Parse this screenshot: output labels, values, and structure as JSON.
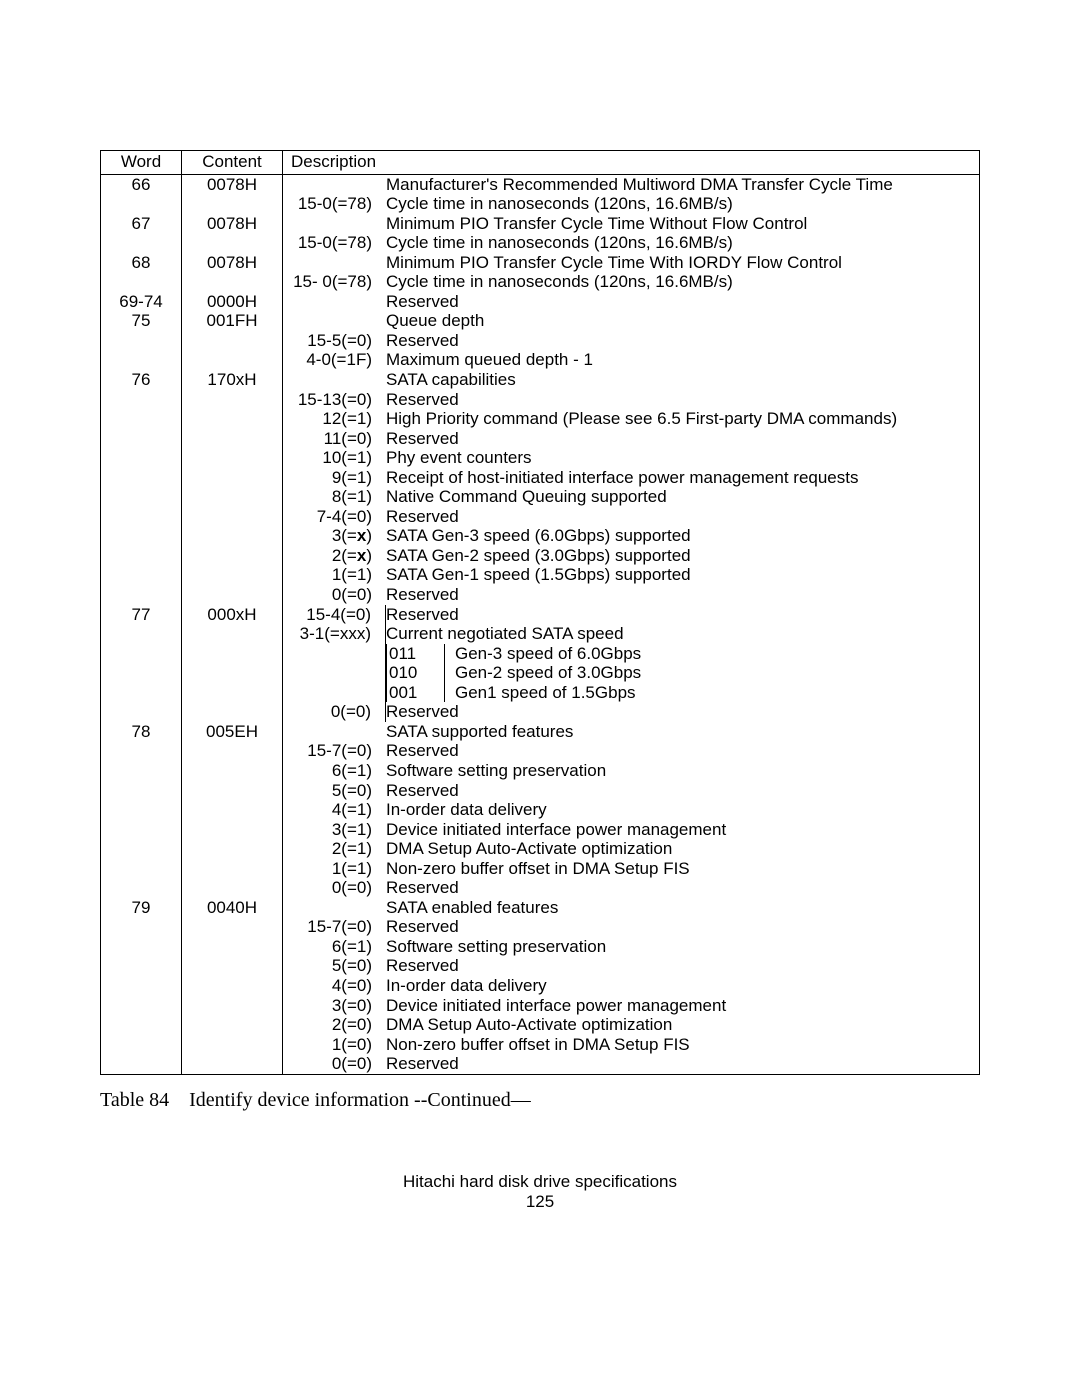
{
  "columns": {
    "word": "Word",
    "content": "Content",
    "description": "Description"
  },
  "rows": [
    {
      "word": "66",
      "content": "0078H",
      "lines": [
        {
          "bits": "",
          "text": "Manufacturer's Recommended Multiword DMA Transfer Cycle Time"
        },
        {
          "bits": "15-0(=78)",
          "text": "Cycle time in nanoseconds (120ns, 16.6MB/s)"
        }
      ]
    },
    {
      "word": "67",
      "content": "0078H",
      "lines": [
        {
          "bits": "",
          "text": "Minimum PIO Transfer Cycle Time Without Flow Control"
        },
        {
          "bits": "15-0(=78)",
          "text": "Cycle time in nanoseconds (120ns, 16.6MB/s)"
        }
      ]
    },
    {
      "word": "68",
      "content": "0078H",
      "lines": [
        {
          "bits": "",
          "text": "Minimum PIO Transfer Cycle Time With IORDY Flow Control"
        },
        {
          "bits": "15- 0(=78)",
          "text": "Cycle time in nanoseconds (120ns, 16.6MB/s)"
        }
      ]
    },
    {
      "word": "69-74",
      "content": "0000H",
      "lines": [
        {
          "bits": "",
          "text": "Reserved"
        }
      ]
    },
    {
      "word": "75",
      "content": "001FH",
      "lines": [
        {
          "bits": "",
          "text": "Queue depth"
        },
        {
          "bits": "15-5(=0)",
          "text": "Reserved"
        },
        {
          "bits": "4-0(=1F)",
          "text": "Maximum queued depth - 1"
        }
      ]
    },
    {
      "word": "76",
      "content": "170xH",
      "lines": [
        {
          "bits": "",
          "text": "SATA capabilities"
        },
        {
          "bits": "15-13(=0)",
          "text": "Reserved"
        },
        {
          "bits": "12(=1)",
          "text": "High Priority command (Please see 6.5 First-party DMA commands)"
        },
        {
          "bits": "11(=0)",
          "text": "Reserved"
        },
        {
          "bits": "10(=1)",
          "text": "Phy event counters"
        },
        {
          "bits": "9(=1)",
          "text": "Receipt of host-initiated interface power management requests"
        },
        {
          "bits": "8(=1)",
          "text": "Native Command Queuing supported"
        },
        {
          "bits": "7-4(=0)",
          "text": "Reserved"
        },
        {
          "bits": "3(=x)",
          "text": "SATA Gen-3 speed (6.0Gbps) supported",
          "boldX": true
        },
        {
          "bits": "2(=x)",
          "text": "SATA Gen-2 speed (3.0Gbps) supported",
          "boldX": true
        },
        {
          "bits": "1(=1)",
          "text": "SATA Gen-1 speed (1.5Gbps) supported"
        },
        {
          "bits": "0(=0)",
          "text": "Reserved"
        }
      ]
    },
    {
      "word": "77",
      "content": "000xH",
      "borderedBits": true,
      "lines": [
        {
          "bits": "15-4(=0)",
          "text": "Reserved"
        },
        {
          "bits": "3-1(=xxx)",
          "text": "Current negotiated SATA speed"
        },
        {
          "bits": "",
          "sub": {
            "code": "011",
            "label": "Gen-3 speed of 6.0Gbps"
          }
        },
        {
          "bits": "",
          "sub": {
            "code": "010",
            "label": "Gen-2 speed of 3.0Gbps"
          }
        },
        {
          "bits": "",
          "sub": {
            "code": "001",
            "label": "Gen1 speed of 1.5Gbps"
          }
        },
        {
          "bits": "0(=0)",
          "text": "Reserved"
        }
      ]
    },
    {
      "word": "78",
      "content": "005EH",
      "lines": [
        {
          "bits": "",
          "text": "SATA supported features"
        },
        {
          "bits": "15-7(=0)",
          "text": "Reserved"
        },
        {
          "bits": "6(=1)",
          "text": "Software setting preservation"
        },
        {
          "bits": "5(=0)",
          "text": "Reserved"
        },
        {
          "bits": "4(=1)",
          "text": "In-order data delivery"
        },
        {
          "bits": "3(=1)",
          "text": "Device initiated interface power management"
        },
        {
          "bits": "2(=1)",
          "text": "DMA Setup Auto-Activate optimization"
        },
        {
          "bits": "1(=1)",
          "text": "Non-zero buffer offset in DMA Setup FIS"
        },
        {
          "bits": "0(=0)",
          "text": "Reserved"
        }
      ]
    },
    {
      "word": "79",
      "content": "0040H",
      "lines": [
        {
          "bits": "",
          "text": "SATA enabled features"
        },
        {
          "bits": "15-7(=0)",
          "text": "Reserved"
        },
        {
          "bits": "6(=1)",
          "text": "Software setting preservation"
        },
        {
          "bits": "5(=0)",
          "text": "Reserved"
        },
        {
          "bits": "4(=0)",
          "text": "In-order data delivery"
        },
        {
          "bits": "3(=0)",
          "text": "Device initiated interface power management"
        },
        {
          "bits": "2(=0)",
          "text": "DMA Setup Auto-Activate optimization"
        },
        {
          "bits": "1(=0)",
          "text": "Non-zero buffer offset in DMA Setup FIS"
        },
        {
          "bits": "0(=0)",
          "text": "Reserved"
        }
      ]
    }
  ],
  "caption": "Table 84 Identify device information --Continued—",
  "footer": {
    "line1": "Hitachi hard disk drive specifications",
    "line2": "125"
  }
}
